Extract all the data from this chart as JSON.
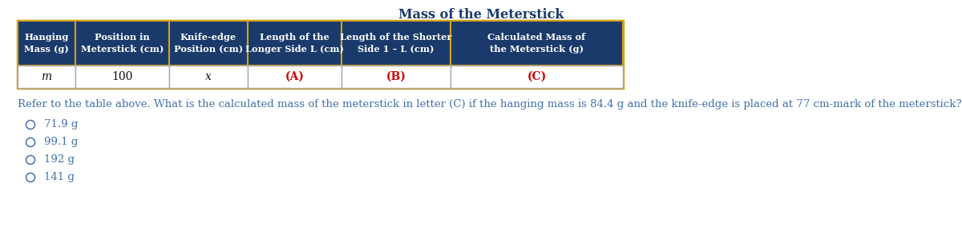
{
  "title": "Mass of the Meterstick",
  "title_color": "#1a3a6b",
  "title_fontsize": 11.5,
  "header_bg": "#1a3a6b",
  "header_text_color": "#ffffff",
  "header_border_color": "#d4a017",
  "data_bg": "#ffffff",
  "data_border_color": "#aaaaaa",
  "col_headers": [
    "Hanging\nMass (g)",
    "Position in\nMeterstick (cm)",
    "Knife-edge\nPosition (cm)",
    "Length of the\nLonger Side L (cm)",
    "Length of the Shorter\nSide 1 – L (cm)",
    "Calculated Mass of\nthe Meterstick (g)"
  ],
  "data_row": [
    "m",
    "100",
    "x",
    "(A)",
    "(B)",
    "(C)"
  ],
  "data_row_colors": [
    "#111111",
    "#111111",
    "#111111",
    "#cc0000",
    "#cc0000",
    "#cc0000"
  ],
  "data_row_italic": [
    true,
    false,
    true,
    false,
    false,
    false
  ],
  "data_row_bold": [
    false,
    false,
    false,
    true,
    true,
    true
  ],
  "question_text": "Refer to the table above. What is the calculated mass of the meterstick in letter (C) if the hanging mass is 84.4 g and the knife-edge is placed at 77 cm-mark of the meterstick?",
  "question_color": "#4472a8",
  "question_fontsize": 9.5,
  "choices": [
    "71.9 g",
    "99.1 g",
    "192 g",
    "141 g"
  ],
  "choices_color": "#4472a8",
  "choices_fontsize": 9.5,
  "background_color": "#ffffff",
  "fig_width": 12.0,
  "fig_height": 3.04,
  "dpi": 100
}
